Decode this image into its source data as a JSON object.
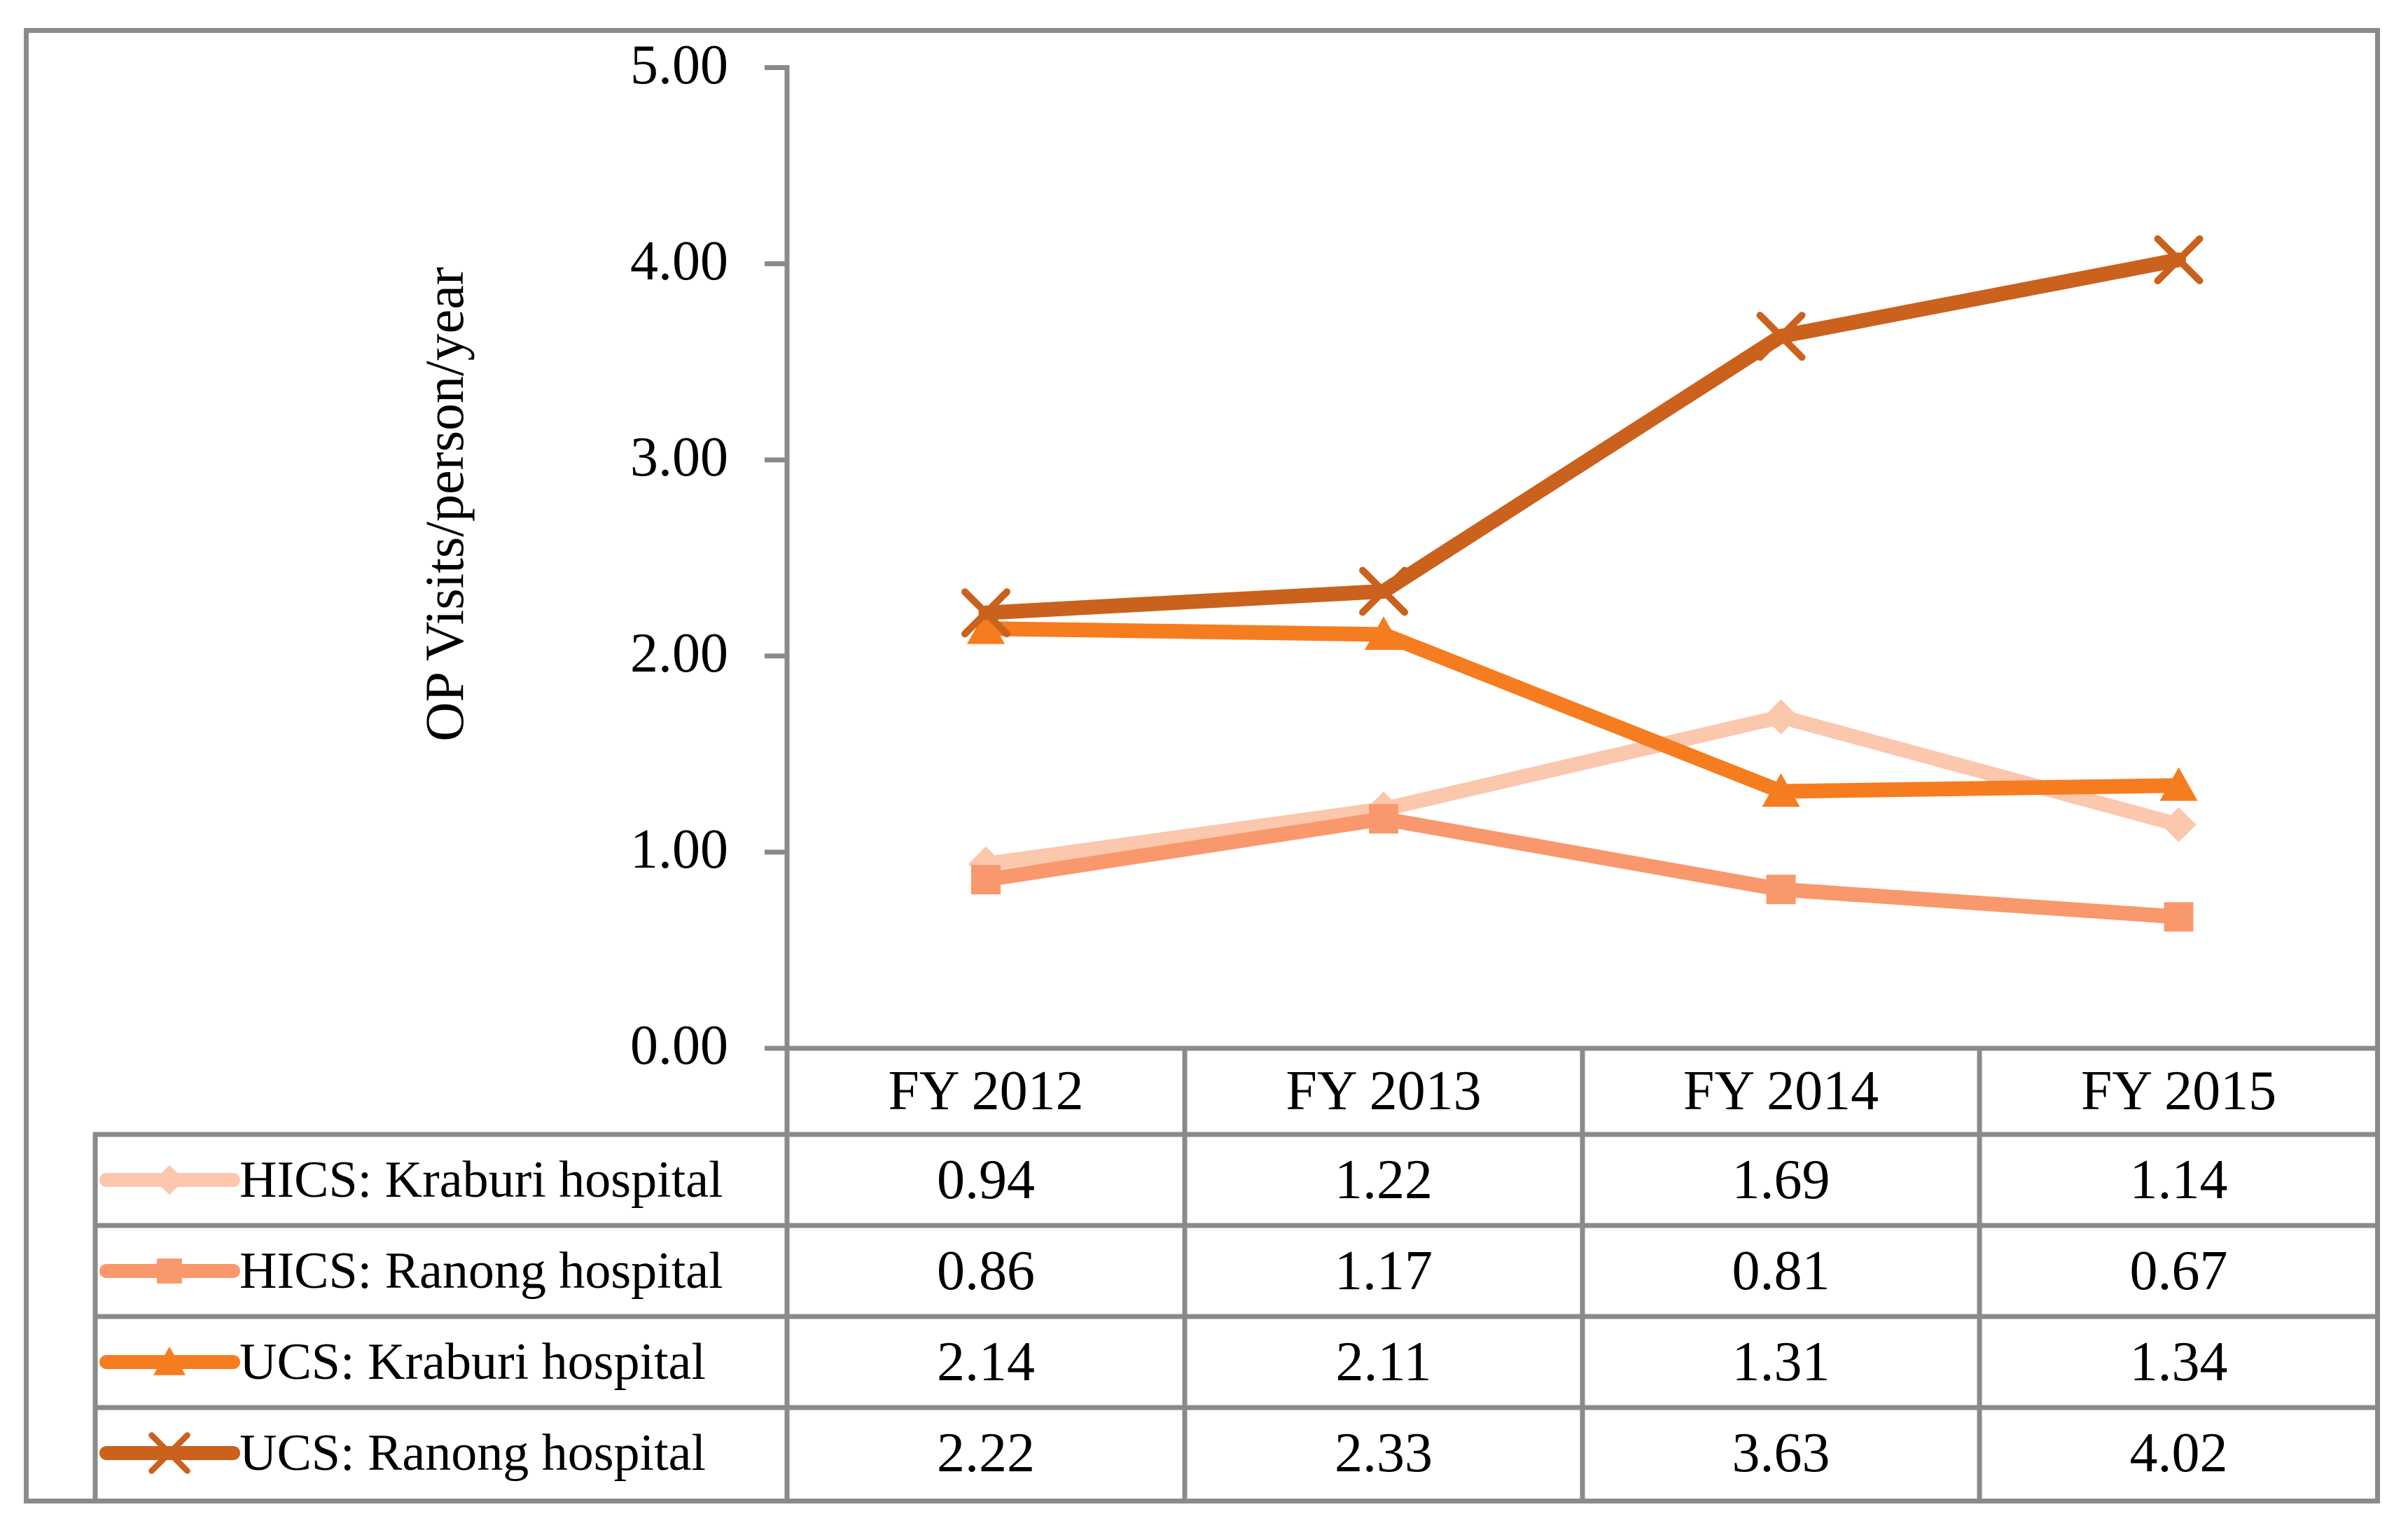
{
  "chart_data": {
    "type": "line",
    "title": "",
    "ylabel": "OP Visits/person/year",
    "xlabel": "",
    "categories": [
      "FY 2012",
      "FY 2013",
      "FY 2014",
      "FY 2015"
    ],
    "series": [
      {
        "name": "HICS: Kraburi hospital",
        "marker": "diamond",
        "color": "#FBC7AD",
        "values": [
          0.94,
          1.22,
          1.69,
          1.14
        ]
      },
      {
        "name": "HICS: Ranong hospital",
        "marker": "square",
        "color": "#F9986C",
        "values": [
          0.86,
          1.17,
          0.81,
          0.67
        ]
      },
      {
        "name": "UCS: Kraburi hospital",
        "marker": "triangle",
        "color": "#F67C20",
        "values": [
          2.14,
          2.11,
          1.31,
          1.34
        ]
      },
      {
        "name": "UCS: Ranong hospital",
        "marker": "x",
        "color": "#CA611D",
        "values": [
          2.22,
          2.33,
          3.63,
          4.02
        ]
      }
    ],
    "ylim": [
      0,
      5
    ],
    "ytick_labels": [
      "0.00",
      "1.00",
      "2.00",
      "3.00",
      "4.00",
      "5.00"
    ],
    "value_format_decimals": 2,
    "grid": "off",
    "legend_position": "table-left",
    "axis_color": "#8A8A8A",
    "text_color": "#000000",
    "background_color": "#FFFFFF"
  }
}
